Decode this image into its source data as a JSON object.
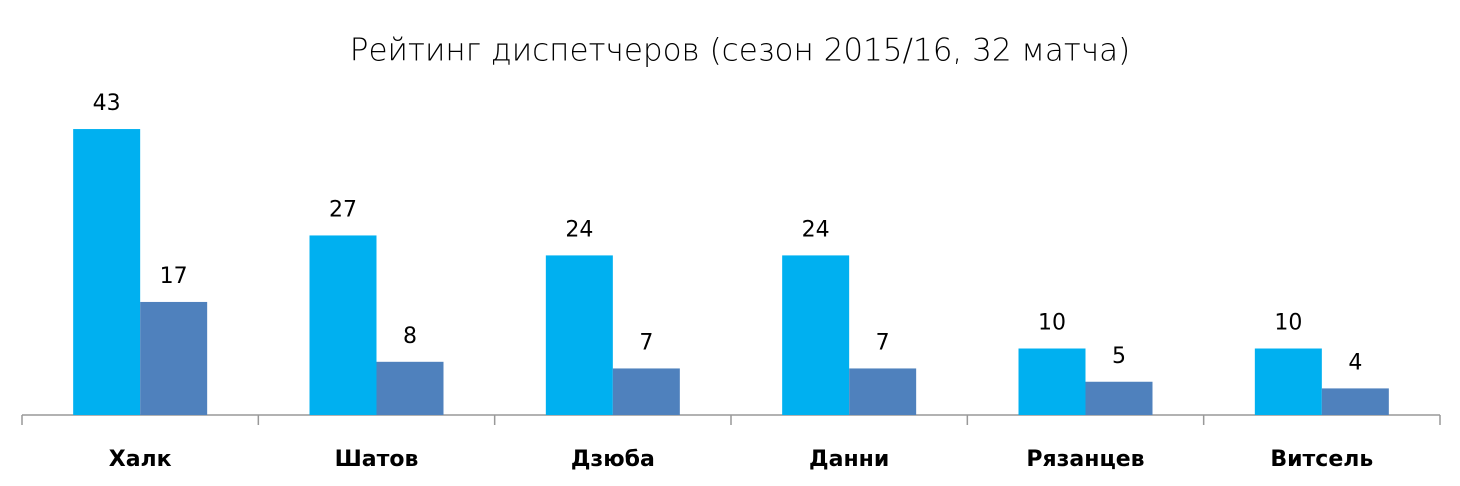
{
  "chart_data": {
    "type": "bar",
    "title": "Рейтинг диспетчеров (сезон 2015/16, 32 матча)",
    "categories": [
      "Халк",
      "Шатов",
      "Дзюба",
      "Данни",
      "Рязанцев",
      "Витсель"
    ],
    "series": [
      {
        "color": "#00b0f0",
        "values": [
          43,
          27,
          24,
          24,
          10,
          10
        ]
      },
      {
        "color": "#4f81bd",
        "values": [
          17,
          8,
          7,
          7,
          5,
          4
        ]
      }
    ],
    "ylim": [
      0,
      45
    ]
  }
}
